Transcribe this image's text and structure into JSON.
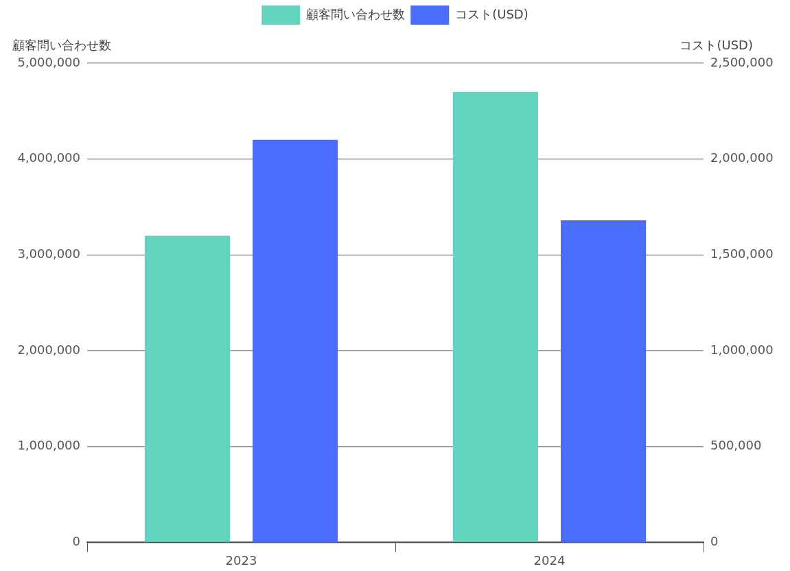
{
  "chart_data": {
    "type": "bar",
    "categories": [
      "2023",
      "2024"
    ],
    "series": [
      {
        "name": "顧客問い合わせ数",
        "color": "#63d4bf",
        "values": [
          3200000,
          4700000
        ]
      },
      {
        "name": "コスト(USD)",
        "color": "#4a6dff",
        "values": [
          2100000,
          1680000
        ],
        "axis": "y2"
      }
    ],
    "ylabel": "顧客問い合わせ数",
    "y2label": "コスト(USD)",
    "ylim": [
      0,
      5000000
    ],
    "yticks": [
      0,
      {
        "value": 1000000,
        "label": "1,000,000"
      },
      {
        "value": 2000000,
        "label": "2,000,000"
      },
      {
        "value": 3000000,
        "label": "3,000,000"
      },
      {
        "value": 4000000,
        "label": "4,000,000"
      },
      {
        "value": 5000000,
        "label": "5,000,000"
      }
    ],
    "y2lim": [
      0,
      2500000
    ],
    "y2ticks": [
      0,
      {
        "value": 500000,
        "label": "500,000"
      },
      {
        "value": 1000000,
        "label": "1,000,000"
      },
      {
        "value": 1500000,
        "label": "1,500,000"
      },
      {
        "value": 2000000,
        "label": "2,000,000"
      },
      {
        "value": 2500000,
        "label": "2,500,000"
      }
    ],
    "grid": "y",
    "legend": "top"
  }
}
